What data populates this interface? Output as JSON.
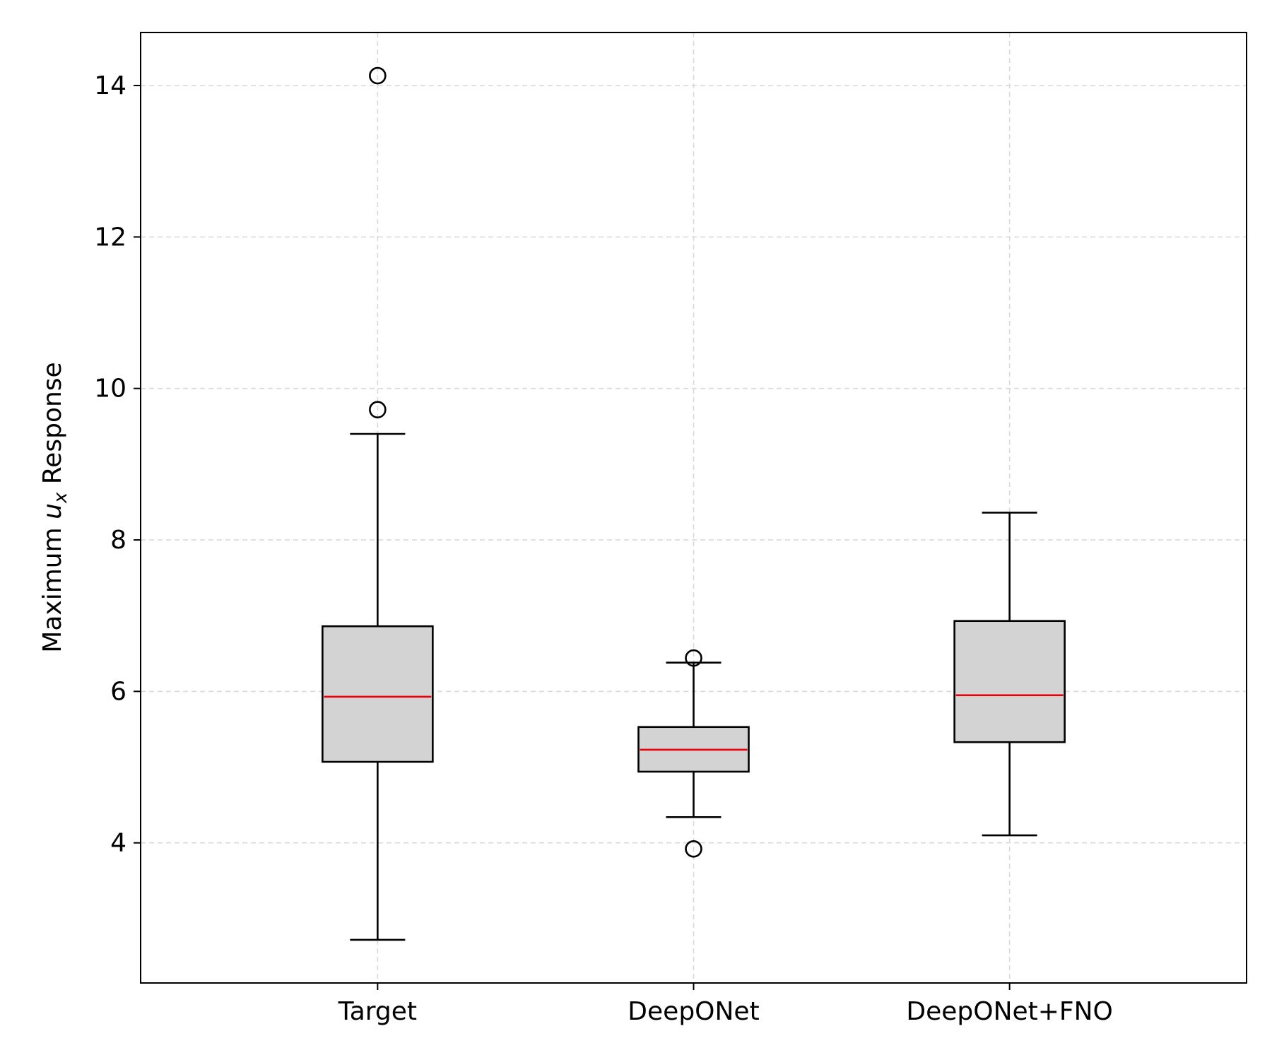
{
  "chart_data": {
    "type": "box",
    "title": "",
    "xlabel": "",
    "ylabel": {
      "prefix": "Maximum ",
      "var": "u",
      "sub": "x",
      "suffix": " Response"
    },
    "ylim": [
      2.15,
      14.7
    ],
    "yticks": [
      4,
      6,
      8,
      10,
      12,
      14
    ],
    "grid": true,
    "categories": [
      "Target",
      "DeepONet",
      "DeepONet+FNO"
    ],
    "boxes": [
      {
        "name": "Target",
        "whisker_low": 2.72,
        "q1": 5.07,
        "median": 5.93,
        "q3": 6.86,
        "whisker_high": 9.4,
        "outliers": [
          9.72,
          14.13
        ]
      },
      {
        "name": "DeepONet",
        "whisker_low": 4.34,
        "q1": 4.94,
        "median": 5.23,
        "q3": 5.53,
        "whisker_high": 6.38,
        "outliers": [
          3.92,
          6.44
        ]
      },
      {
        "name": "DeepONet+FNO",
        "whisker_low": 4.1,
        "q1": 5.33,
        "median": 5.95,
        "q3": 6.93,
        "whisker_high": 8.36,
        "outliers": []
      }
    ],
    "colors": {
      "box_fill": "#d3d3d3",
      "median": "#e8000b",
      "grid": "#d9d9d9",
      "line": "#000000"
    }
  }
}
